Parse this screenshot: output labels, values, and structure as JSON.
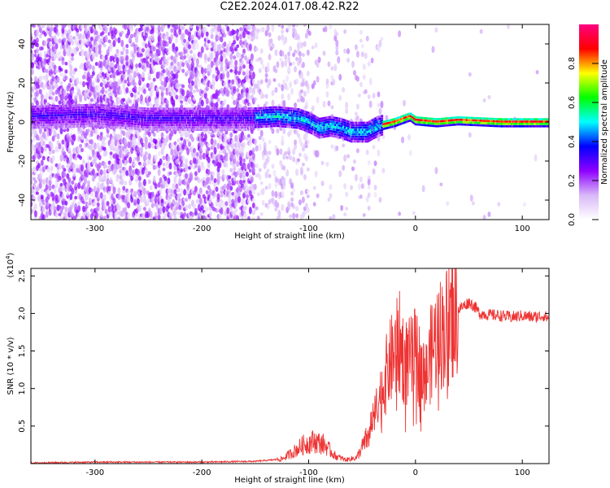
{
  "title": "C2E2.2024.017.08.42.R22",
  "chart_data": [
    {
      "type": "heatmap",
      "name": "spectrogram",
      "xlabel": "Height of straight line (km)",
      "ylabel": "Frequency (Hz)",
      "xlim": [
        -360,
        125
      ],
      "ylim": [
        -50,
        50
      ],
      "xticks": [
        -300,
        -200,
        -100,
        0,
        100
      ],
      "yticks": [
        -40,
        -20,
        0,
        20,
        40
      ],
      "colorbar": {
        "label": "Normalized spectral amplitude",
        "range": [
          0.0,
          1.0
        ],
        "ticks": [
          0.0,
          0.2,
          0.4,
          0.6,
          0.8
        ],
        "colors": [
          "#ffffff",
          "#d8b8f8",
          "#8f00ff",
          "#0000ff",
          "#00ffff",
          "#00ff00",
          "#ffff00",
          "#ff0000",
          "#ff0080"
        ]
      },
      "ridge": [
        {
          "x": -360,
          "y": 3
        },
        {
          "x": -300,
          "y": 4
        },
        {
          "x": -250,
          "y": 2
        },
        {
          "x": -200,
          "y": 2
        },
        {
          "x": -160,
          "y": 2
        },
        {
          "x": -130,
          "y": 3
        },
        {
          "x": -110,
          "y": 2
        },
        {
          "x": -100,
          "y": 0
        },
        {
          "x": -90,
          "y": -3
        },
        {
          "x": -80,
          "y": -2
        },
        {
          "x": -70,
          "y": -3
        },
        {
          "x": -60,
          "y": -5
        },
        {
          "x": -45,
          "y": -5
        },
        {
          "x": -35,
          "y": -2
        },
        {
          "x": -20,
          "y": 0
        },
        {
          "x": -5,
          "y": 3
        },
        {
          "x": 0,
          "y": 1
        },
        {
          "x": 20,
          "y": 0
        },
        {
          "x": 40,
          "y": 1
        },
        {
          "x": 80,
          "y": 0
        },
        {
          "x": 125,
          "y": 0
        }
      ]
    },
    {
      "type": "line",
      "name": "snr",
      "color": "#ee3333",
      "xlabel": "Height of straight line (km)",
      "ylabel": "SNR (10 * v/v)",
      "yscale_label": "(x10",
      "yscale_exp": "4",
      "xlim": [
        -360,
        125
      ],
      "ylim": [
        0,
        2.6
      ],
      "xticks": [
        -300,
        -200,
        -100,
        0,
        100
      ],
      "yticks": [
        0.5,
        1.0,
        1.5,
        2.0,
        2.5
      ],
      "x": [
        -360,
        -300,
        -250,
        -200,
        -150,
        -125,
        -115,
        -105,
        -95,
        -85,
        -75,
        -65,
        -55,
        -45,
        -40,
        -35,
        -30,
        -25,
        -20,
        -15,
        -10,
        -5,
        0,
        5,
        10,
        15,
        20,
        25,
        30,
        35,
        40,
        45,
        50,
        55,
        60,
        70,
        80,
        90,
        100,
        110,
        120,
        125
      ],
      "y": [
        0.01,
        0.02,
        0.02,
        0.02,
        0.03,
        0.06,
        0.15,
        0.25,
        0.3,
        0.25,
        0.1,
        0.05,
        0.08,
        0.35,
        0.55,
        0.8,
        1.05,
        1.3,
        1.45,
        1.6,
        1.35,
        1.35,
        1.45,
        1.3,
        1.15,
        1.5,
        1.7,
        1.75,
        1.85,
        1.95,
        2.05,
        2.1,
        2.15,
        2.1,
        2.0,
        1.98,
        1.97,
        1.95,
        1.97,
        1.95,
        1.97,
        1.93
      ]
    }
  ]
}
